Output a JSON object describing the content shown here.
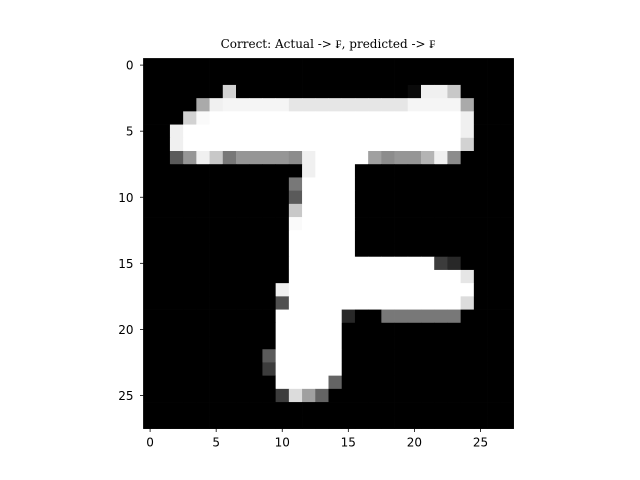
{
  "chart_data": {
    "type": "heatmap",
    "title": "Correct: Actual -> ₣, predicted -> ₣",
    "colormap": "gray",
    "value_range": [
      0,
      255
    ],
    "xlim": [
      -0.5,
      27.5
    ],
    "ylim": [
      27.5,
      -0.5
    ],
    "xticks": [
      0,
      5,
      10,
      15,
      20,
      25
    ],
    "yticks": [
      0,
      5,
      10,
      15,
      20,
      25
    ],
    "pixels": [
      [
        0,
        0,
        0,
        0,
        0,
        0,
        0,
        0,
        0,
        0,
        0,
        0,
        0,
        0,
        0,
        0,
        0,
        0,
        0,
        0,
        0,
        0,
        0,
        0,
        0,
        0,
        0,
        0
      ],
      [
        0,
        0,
        0,
        0,
        0,
        0,
        0,
        0,
        0,
        0,
        0,
        0,
        0,
        0,
        0,
        0,
        0,
        0,
        0,
        0,
        0,
        0,
        0,
        0,
        0,
        0,
        0,
        0
      ],
      [
        0,
        0,
        0,
        0,
        0,
        0,
        210,
        0,
        0,
        0,
        0,
        0,
        0,
        0,
        0,
        0,
        0,
        0,
        0,
        0,
        10,
        240,
        240,
        200,
        0,
        0,
        0,
        0
      ],
      [
        0,
        0,
        0,
        0,
        170,
        240,
        245,
        245,
        245,
        245,
        245,
        230,
        230,
        230,
        230,
        230,
        230,
        230,
        230,
        230,
        245,
        245,
        245,
        245,
        170,
        0,
        0,
        0
      ],
      [
        0,
        0,
        0,
        210,
        250,
        255,
        255,
        255,
        255,
        255,
        255,
        255,
        255,
        255,
        255,
        255,
        255,
        255,
        255,
        255,
        255,
        255,
        255,
        255,
        240,
        0,
        0,
        0
      ],
      [
        0,
        0,
        240,
        255,
        255,
        255,
        255,
        255,
        255,
        255,
        255,
        255,
        255,
        255,
        255,
        255,
        255,
        255,
        255,
        255,
        255,
        255,
        255,
        255,
        240,
        0,
        0,
        0
      ],
      [
        0,
        0,
        240,
        255,
        255,
        255,
        255,
        255,
        255,
        255,
        255,
        255,
        255,
        255,
        255,
        255,
        255,
        255,
        255,
        255,
        255,
        255,
        255,
        255,
        210,
        0,
        0,
        0
      ],
      [
        0,
        0,
        90,
        150,
        240,
        200,
        120,
        150,
        150,
        150,
        150,
        140,
        240,
        255,
        255,
        255,
        255,
        160,
        140,
        150,
        150,
        180,
        240,
        140,
        0,
        0,
        0,
        0
      ],
      [
        0,
        0,
        0,
        0,
        0,
        0,
        0,
        0,
        0,
        0,
        0,
        0,
        240,
        255,
        255,
        255,
        0,
        0,
        0,
        0,
        0,
        0,
        0,
        0,
        0,
        0,
        0,
        0
      ],
      [
        0,
        0,
        0,
        0,
        0,
        0,
        0,
        0,
        0,
        0,
        0,
        120,
        255,
        255,
        255,
        255,
        0,
        0,
        0,
        0,
        0,
        0,
        0,
        0,
        0,
        0,
        0,
        0
      ],
      [
        0,
        0,
        0,
        0,
        0,
        0,
        0,
        0,
        0,
        0,
        0,
        90,
        255,
        255,
        255,
        255,
        0,
        0,
        0,
        0,
        0,
        0,
        0,
        0,
        0,
        0,
        0,
        0
      ],
      [
        0,
        0,
        0,
        0,
        0,
        0,
        0,
        0,
        0,
        0,
        0,
        200,
        255,
        255,
        255,
        255,
        0,
        0,
        0,
        0,
        0,
        0,
        0,
        0,
        0,
        0,
        0,
        0
      ],
      [
        0,
        0,
        0,
        0,
        0,
        0,
        0,
        0,
        0,
        0,
        0,
        250,
        255,
        255,
        255,
        255,
        0,
        0,
        0,
        0,
        0,
        0,
        0,
        0,
        0,
        0,
        0,
        0
      ],
      [
        0,
        0,
        0,
        0,
        0,
        0,
        0,
        0,
        0,
        0,
        0,
        255,
        255,
        255,
        255,
        255,
        0,
        0,
        0,
        0,
        0,
        0,
        0,
        0,
        0,
        0,
        0,
        0
      ],
      [
        0,
        0,
        0,
        0,
        0,
        0,
        0,
        0,
        0,
        0,
        0,
        255,
        255,
        255,
        255,
        255,
        0,
        0,
        0,
        0,
        0,
        0,
        0,
        0,
        0,
        0,
        0,
        0
      ],
      [
        0,
        0,
        0,
        0,
        0,
        0,
        0,
        0,
        0,
        0,
        0,
        255,
        255,
        255,
        255,
        255,
        255,
        255,
        255,
        255,
        255,
        255,
        60,
        40,
        0,
        0,
        0,
        0
      ],
      [
        0,
        0,
        0,
        0,
        0,
        0,
        0,
        0,
        0,
        0,
        0,
        255,
        255,
        255,
        255,
        255,
        255,
        255,
        255,
        255,
        255,
        255,
        255,
        255,
        230,
        0,
        0,
        0
      ],
      [
        0,
        0,
        0,
        0,
        0,
        0,
        0,
        0,
        0,
        0,
        240,
        255,
        255,
        255,
        255,
        255,
        255,
        255,
        255,
        255,
        255,
        255,
        255,
        255,
        255,
        0,
        0,
        0
      ],
      [
        0,
        0,
        0,
        0,
        0,
        0,
        0,
        0,
        0,
        0,
        80,
        255,
        255,
        255,
        255,
        255,
        255,
        255,
        255,
        255,
        255,
        255,
        255,
        255,
        220,
        0,
        0,
        0
      ],
      [
        0,
        0,
        0,
        0,
        0,
        0,
        0,
        0,
        0,
        0,
        255,
        255,
        255,
        255,
        255,
        40,
        0,
        0,
        120,
        120,
        120,
        120,
        120,
        120,
        0,
        0,
        0,
        0
      ],
      [
        0,
        0,
        0,
        0,
        0,
        0,
        0,
        0,
        0,
        0,
        255,
        255,
        255,
        255,
        255,
        0,
        0,
        0,
        0,
        0,
        0,
        0,
        0,
        0,
        0,
        0,
        0,
        0
      ],
      [
        0,
        0,
        0,
        0,
        0,
        0,
        0,
        0,
        0,
        0,
        255,
        255,
        255,
        255,
        255,
        0,
        0,
        0,
        0,
        0,
        0,
        0,
        0,
        0,
        0,
        0,
        0,
        0
      ],
      [
        0,
        0,
        0,
        0,
        0,
        0,
        0,
        0,
        0,
        90,
        255,
        255,
        255,
        255,
        255,
        0,
        0,
        0,
        0,
        0,
        0,
        0,
        0,
        0,
        0,
        0,
        0,
        0
      ],
      [
        0,
        0,
        0,
        0,
        0,
        0,
        0,
        0,
        0,
        60,
        255,
        255,
        255,
        255,
        255,
        0,
        0,
        0,
        0,
        0,
        0,
        0,
        0,
        0,
        0,
        0,
        0,
        0
      ],
      [
        0,
        0,
        0,
        0,
        0,
        0,
        0,
        0,
        0,
        0,
        255,
        255,
        255,
        255,
        100,
        0,
        0,
        0,
        0,
        0,
        0,
        0,
        0,
        0,
        0,
        0,
        0,
        0
      ],
      [
        0,
        0,
        0,
        0,
        0,
        0,
        0,
        0,
        0,
        0,
        60,
        220,
        160,
        100,
        0,
        0,
        0,
        0,
        0,
        0,
        0,
        0,
        0,
        0,
        0,
        0,
        0,
        0
      ],
      [
        0,
        0,
        0,
        0,
        0,
        0,
        0,
        0,
        0,
        0,
        0,
        0,
        0,
        0,
        0,
        0,
        0,
        0,
        0,
        0,
        0,
        0,
        0,
        0,
        0,
        0,
        0,
        0
      ],
      [
        0,
        0,
        0,
        0,
        0,
        0,
        0,
        0,
        0,
        0,
        0,
        0,
        0,
        0,
        0,
        0,
        0,
        0,
        0,
        0,
        0,
        0,
        0,
        0,
        0,
        0,
        0,
        0
      ]
    ]
  }
}
